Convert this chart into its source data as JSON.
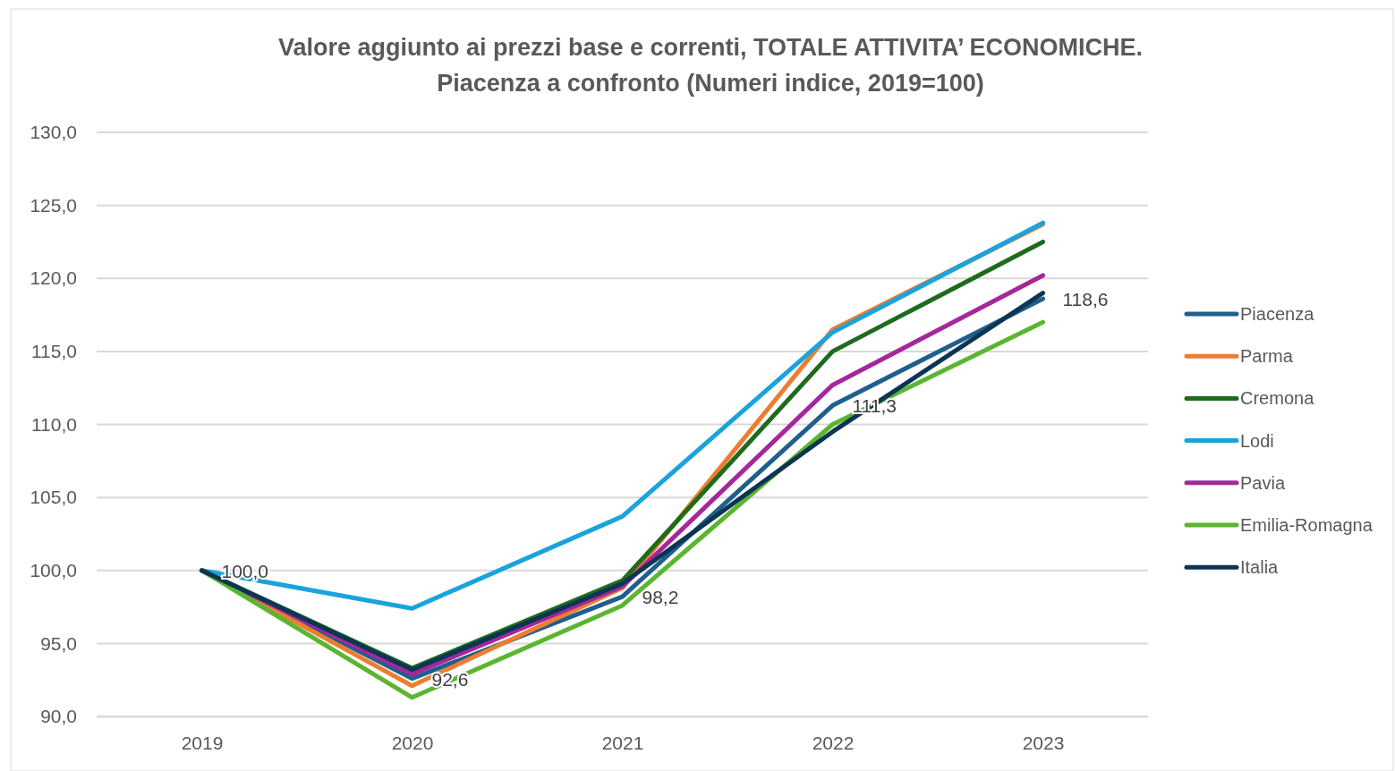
{
  "chart_data": {
    "type": "line",
    "title": "Valore aggiunto ai prezzi base e correnti, TOTALE ATTIVITA’ ECONOMICHE.\nPiacenza a confronto (Numeri indice, 2019=100)",
    "categories": [
      "2019",
      "2020",
      "2021",
      "2022",
      "2023"
    ],
    "series": [
      {
        "name": "Piacenza",
        "color": "#1f5f8b",
        "values": [
          100.0,
          92.6,
          98.2,
          111.3,
          118.6
        ],
        "value_labels": [
          "100,0",
          "92,6",
          "98,2",
          "111,3",
          "118,6"
        ]
      },
      {
        "name": "Parma",
        "color": "#ed7d31",
        "values": [
          100.0,
          92.1,
          98.8,
          116.5,
          123.7
        ]
      },
      {
        "name": "Cremona",
        "color": "#1e6b1e",
        "values": [
          100.0,
          93.3,
          99.3,
          115.0,
          122.5
        ]
      },
      {
        "name": "Lodi",
        "color": "#1aa3dc",
        "values": [
          100.0,
          97.4,
          103.7,
          116.3,
          123.8
        ]
      },
      {
        "name": "Pavia",
        "color": "#a5279c",
        "values": [
          100.0,
          92.9,
          98.9,
          112.7,
          120.2
        ]
      },
      {
        "name": "Emilia-Romagna",
        "color": "#5bb531",
        "values": [
          100.0,
          91.3,
          97.6,
          110.0,
          117.0
        ]
      },
      {
        "name": "Italia",
        "color": "#0d3553",
        "values": [
          100.0,
          93.2,
          99.1,
          109.5,
          119.0
        ]
      }
    ],
    "ylim": [
      90,
      130
    ],
    "yticks": [
      {
        "value": 90,
        "label": "90,0"
      },
      {
        "value": 95,
        "label": "95,0"
      },
      {
        "value": 100,
        "label": "100,0"
      },
      {
        "value": 105,
        "label": "105,0"
      },
      {
        "value": 110,
        "label": "110,0"
      },
      {
        "value": 115,
        "label": "115,0"
      },
      {
        "value": 120,
        "label": "120,0"
      },
      {
        "value": 125,
        "label": "125,0"
      },
      {
        "value": 130,
        "label": "130,0"
      }
    ],
    "grid": "y",
    "legend": "right",
    "marker": "none",
    "line_style": "solid"
  }
}
